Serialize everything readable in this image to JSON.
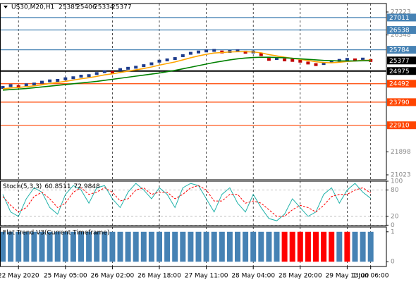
{
  "chart_data": [
    {
      "type": "price",
      "title": "US30,M20,H1",
      "ohlc": [
        25385,
        25406,
        25334,
        25377
      ],
      "categories": [
        null,
        null,
        "22 May 2020",
        null,
        null,
        null,
        null,
        null,
        "25 May 05:00",
        null,
        null,
        null,
        null,
        null,
        "26 May 02:00",
        null,
        null,
        null,
        null,
        null,
        "26 May 18:00",
        null,
        null,
        null,
        null,
        null,
        "27 May 11:00",
        null,
        null,
        null,
        null,
        null,
        "28 May 04:00",
        null,
        null,
        null,
        null,
        null,
        "28 May 20:00",
        null,
        null,
        null,
        null,
        null,
        "29 May 13:00",
        null,
        null,
        "1 Jun 06:00"
      ],
      "series": [
        {
          "color": "#1e3c8c",
          "style": "markers",
          "values": [
            24350,
            24420,
            24380,
            24450,
            24480,
            24550,
            24600,
            24620,
            24680,
            24720,
            24780,
            24800,
            24880,
            24950,
            24920,
            25030,
            25080,
            25120,
            25180,
            25250,
            25350,
            25400,
            25450,
            25560,
            25650,
            25700,
            25740,
            25760,
            25700,
            25720,
            25750,
            25690,
            25700,
            25600,
            25420,
            25450,
            25400,
            25380,
            25350,
            25280,
            25220,
            25260,
            25330,
            25380,
            25420,
            25400,
            25430,
            25377
          ]
        },
        {
          "color": "#ffa500",
          "style": "line",
          "values": [
            24300,
            24330,
            24350,
            24380,
            24410,
            24450,
            24500,
            24540,
            24580,
            24630,
            24680,
            24720,
            24770,
            24830,
            24870,
            24920,
            24970,
            25020,
            25070,
            25130,
            25200,
            25260,
            25320,
            25400,
            25480,
            25550,
            25610,
            25660,
            25680,
            25700,
            25710,
            25710,
            25700,
            25670,
            25600,
            25550,
            25500,
            25460,
            25420,
            25380,
            25330,
            25300,
            25290,
            25310,
            25340,
            25360,
            25380,
            25390
          ]
        },
        {
          "color": "#008000",
          "style": "line",
          "values": [
            24250,
            24270,
            24290,
            24310,
            24340,
            24370,
            24400,
            24430,
            24460,
            24490,
            24520,
            24550,
            24580,
            24620,
            24660,
            24700,
            24740,
            24780,
            24820,
            24860,
            24900,
            24950,
            25000,
            25060,
            25120,
            25180,
            25240,
            25300,
            25350,
            25400,
            25440,
            25470,
            25490,
            25500,
            25500,
            25490,
            25480,
            25460,
            25440,
            25420,
            25400,
            25380,
            25370,
            25360,
            25360,
            25360,
            25365,
            25370
          ]
        }
      ],
      "ylim": [
        20835,
        27545
      ],
      "yticks": [
        27223,
        26348,
        21898,
        21023
      ],
      "levels": [
        {
          "value": 27011,
          "color": "#4682b4"
        },
        {
          "value": 26538,
          "color": "#4682b4"
        },
        {
          "value": 25784,
          "color": "#4682b4"
        },
        {
          "value": 24975,
          "color": "#000000"
        },
        {
          "value": 24492,
          "color": "#ff4500"
        },
        {
          "value": 23790,
          "color": "#ff4500"
        },
        {
          "value": 22910,
          "color": "#ff4500"
        }
      ],
      "current": {
        "value": 25377,
        "color": "#000000"
      },
      "grid": true
    },
    {
      "type": "line",
      "title": "Stoch(5,3,3)",
      "readings": [
        60.8511,
        72.9848
      ],
      "series": [
        {
          "color": "#20b2aa",
          "dashed": false,
          "values": [
            70,
            30,
            20,
            60,
            85,
            75,
            40,
            25,
            70,
            90,
            80,
            50,
            85,
            90,
            60,
            40,
            75,
            95,
            80,
            60,
            85,
            70,
            40,
            85,
            95,
            90,
            60,
            30,
            70,
            85,
            50,
            30,
            70,
            40,
            15,
            10,
            25,
            60,
            40,
            20,
            30,
            70,
            85,
            50,
            80,
            95,
            75,
            61
          ]
        },
        {
          "color": "#ff0000",
          "dashed": true,
          "values": [
            65,
            45,
            30,
            40,
            65,
            75,
            60,
            40,
            50,
            75,
            85,
            70,
            75,
            85,
            75,
            55,
            60,
            80,
            85,
            70,
            75,
            75,
            60,
            70,
            85,
            90,
            80,
            55,
            55,
            70,
            70,
            50,
            55,
            50,
            35,
            20,
            20,
            35,
            45,
            40,
            30,
            45,
            65,
            70,
            70,
            80,
            85,
            73
          ]
        }
      ],
      "ylim": [
        -1,
        100
      ],
      "yticks": [
        100,
        80,
        20,
        0
      ],
      "grid": true
    },
    {
      "type": "bar",
      "title": "Flat Trend V3(Current Timeframe)",
      "series": [
        {
          "color": "#4682b4",
          "values": [
            1,
            1,
            1,
            1,
            1,
            1,
            1,
            1,
            1,
            1,
            1,
            1,
            1,
            1,
            1,
            1,
            1,
            1,
            1,
            1,
            1,
            1,
            1,
            1,
            1,
            1,
            1,
            1,
            1,
            1,
            1,
            1,
            1,
            1,
            1,
            1,
            null,
            null,
            null,
            null,
            null,
            null,
            null,
            1,
            null,
            1,
            1,
            1
          ]
        },
        {
          "color": "#ff0000",
          "values": [
            null,
            null,
            null,
            null,
            null,
            null,
            null,
            null,
            null,
            null,
            null,
            null,
            null,
            null,
            null,
            null,
            null,
            null,
            null,
            null,
            null,
            null,
            null,
            null,
            null,
            null,
            null,
            null,
            null,
            null,
            null,
            null,
            null,
            null,
            null,
            null,
            1,
            1,
            1,
            1,
            1,
            1,
            1,
            null,
            1,
            null,
            null,
            null
          ]
        }
      ],
      "ylim": [
        -0.16,
        1.16
      ],
      "yticks": [
        1,
        0
      ]
    }
  ]
}
